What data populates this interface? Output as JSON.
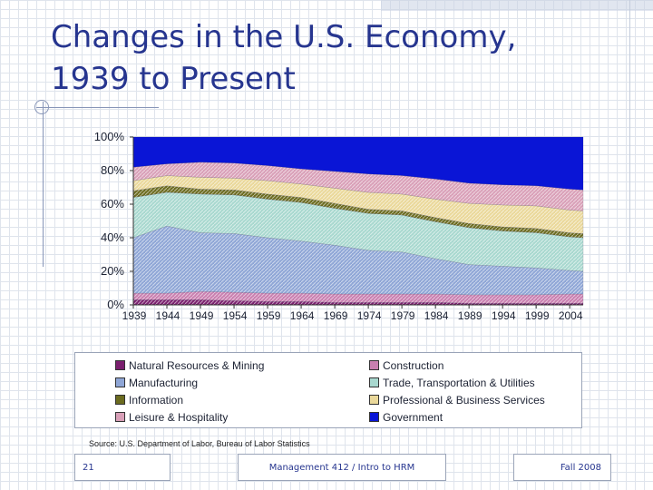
{
  "slide": {
    "title_line1": "Changes in the U.S. Economy,",
    "title_line2": "1939 to Present",
    "source": "Source: U.S. Department of Labor, Bureau of Labor Statistics",
    "footer_left": "21",
    "footer_center": "Management 412 / Intro to HRM",
    "footer_right": "Fall 2008"
  },
  "chart_data": {
    "type": "area",
    "stacked_percent": true,
    "title": "",
    "xlabel": "",
    "ylabel": "",
    "ylim": [
      0,
      100
    ],
    "y_ticks": [
      "0%",
      "20%",
      "40%",
      "60%",
      "80%",
      "100%"
    ],
    "x_ticks": [
      "1939",
      "1944",
      "1949",
      "1954",
      "1959",
      "1964",
      "1969",
      "1974",
      "1979",
      "1984",
      "1989",
      "1994",
      "1999",
      "2004"
    ],
    "x": [
      1939,
      1944,
      1949,
      1954,
      1959,
      1964,
      1969,
      1974,
      1979,
      1984,
      1989,
      1994,
      1999,
      2004,
      2006
    ],
    "legend_position": "bottom",
    "series": [
      {
        "name": "Natural Resources & Mining",
        "color": "#7a1f6e",
        "values": [
          3,
          3,
          3,
          2.5,
          2,
          2,
          1.5,
          1.5,
          1.5,
          1.5,
          1,
          1,
          1,
          1,
          1
        ]
      },
      {
        "name": "Construction",
        "color": "#c97fb0",
        "values": [
          4,
          4,
          5,
          5,
          5,
          5,
          5,
          5,
          5,
          5,
          5,
          5,
          5,
          5.5,
          5.5
        ]
      },
      {
        "name": "Manufacturing",
        "color": "#8fa6d6",
        "values": [
          33,
          40,
          35,
          35,
          33,
          31,
          29,
          26,
          25,
          21,
          18,
          17,
          16,
          14,
          13.5
        ]
      },
      {
        "name": "Trade, Transportation & Utilities",
        "color": "#a8d8cf",
        "values": [
          24,
          20,
          23,
          23,
          23,
          23,
          22,
          22,
          22,
          22,
          22,
          21,
          21,
          20,
          20
        ]
      },
      {
        "name": "Information",
        "color": "#6b6b1f",
        "values": [
          4,
          4,
          3,
          3,
          3,
          3,
          3,
          2.5,
          2.5,
          2.5,
          2.5,
          2.5,
          2.5,
          2.5,
          2.5
        ]
      },
      {
        "name": "Professional & Business Services",
        "color": "#ead89a",
        "values": [
          6,
          6,
          7,
          7,
          8,
          8,
          9,
          10,
          10,
          11,
          12,
          13,
          13.5,
          13.5,
          13.5
        ]
      },
      {
        "name": "Leisure & Hospitality",
        "color": "#d9a0b8",
        "values": [
          8,
          7,
          9,
          9,
          9,
          9,
          10,
          11,
          11,
          12,
          12,
          12,
          12,
          12.5,
          12.5
        ]
      },
      {
        "name": "Government",
        "color": "#0a15d6",
        "values": [
          18,
          16,
          15,
          15.5,
          17,
          19,
          20.5,
          22,
          23,
          25,
          27.5,
          28.5,
          29,
          31,
          31.5
        ]
      }
    ]
  }
}
